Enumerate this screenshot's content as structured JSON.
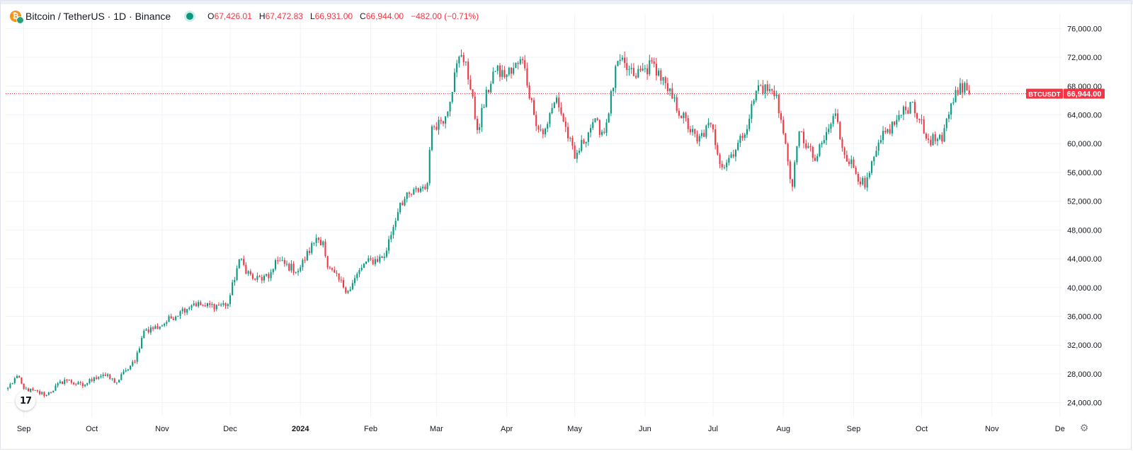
{
  "header": {
    "symbol_title": "Bitcoin / TetherUS · 1D · Binance",
    "coin_icon_letter": "₿",
    "status_icon": "live-dot",
    "ohlc": {
      "open_label": "O",
      "open": "67,426.01",
      "high_label": "H",
      "high": "67,472.83",
      "low_label": "L",
      "low": "66,931.00",
      "close_label": "C",
      "close": "66,944.00",
      "change": "−482.00 (−0.71%)"
    }
  },
  "price_tag": {
    "symbol": "BTCUSDT",
    "price": "66,944.00",
    "value": 66944,
    "color": "#f23645"
  },
  "branding": {
    "logo_text": "17",
    "logo_icon": "tradingview-logo-icon"
  },
  "settings_icon": "gear-icon",
  "colors": {
    "up": "#089981",
    "down": "#f23645",
    "grid": "#f0f3fa",
    "text": "#131722",
    "axis_text": "#131722"
  },
  "chart_data": {
    "type": "candlestick",
    "x_axis_type": "date",
    "ylim": [
      22000,
      78000
    ],
    "grid": true,
    "y_ticks": [
      {
        "value": 24000,
        "label": "24,000.00"
      },
      {
        "value": 28000,
        "label": "28,000.00"
      },
      {
        "value": 32000,
        "label": "32,000.00"
      },
      {
        "value": 36000,
        "label": "36,000.00"
      },
      {
        "value": 40000,
        "label": "40,000.00"
      },
      {
        "value": 44000,
        "label": "44,000.00"
      },
      {
        "value": 48000,
        "label": "48,000.00"
      },
      {
        "value": 52000,
        "label": "52,000.00"
      },
      {
        "value": 56000,
        "label": "56,000.00"
      },
      {
        "value": 60000,
        "label": "60,000.00"
      },
      {
        "value": 64000,
        "label": "64,000.00"
      },
      {
        "value": 68000,
        "label": "68,000.00"
      },
      {
        "value": 72000,
        "label": "72,000.00"
      },
      {
        "value": 76000,
        "label": "76,000.00"
      }
    ],
    "x_ticks": [
      {
        "date": "2023-09-01",
        "label": "Sep"
      },
      {
        "date": "2023-10-01",
        "label": "Oct"
      },
      {
        "date": "2023-11-01",
        "label": "Nov"
      },
      {
        "date": "2023-12-01",
        "label": "Dec"
      },
      {
        "date": "2024-01-01",
        "label": "2024"
      },
      {
        "date": "2024-02-01",
        "label": "Feb"
      },
      {
        "date": "2024-03-01",
        "label": "Mar"
      },
      {
        "date": "2024-04-01",
        "label": "Apr"
      },
      {
        "date": "2024-05-01",
        "label": "May"
      },
      {
        "date": "2024-06-01",
        "label": "Jun"
      },
      {
        "date": "2024-07-01",
        "label": "Jul"
      },
      {
        "date": "2024-08-01",
        "label": "Aug"
      },
      {
        "date": "2024-09-01",
        "label": "Sep"
      },
      {
        "date": "2024-10-01",
        "label": "Oct"
      },
      {
        "date": "2024-11-01",
        "label": "Nov"
      },
      {
        "date": "2024-12-01",
        "label": "De"
      }
    ],
    "x_range": [
      "2023-08-24",
      "2024-12-02"
    ],
    "last_price": 66944,
    "series": [
      {
        "start_date": "2023-08-25",
        "end_date": "2024-10-22",
        "close_anchors": [
          [
            "2023-08-25",
            26050
          ],
          [
            "2023-08-29",
            27700
          ],
          [
            "2023-09-01",
            25900
          ],
          [
            "2023-09-11",
            25100
          ],
          [
            "2023-09-19",
            27200
          ],
          [
            "2023-09-27",
            26300
          ],
          [
            "2023-10-02",
            27500
          ],
          [
            "2023-10-06",
            27900
          ],
          [
            "2023-10-12",
            26800
          ],
          [
            "2023-10-16",
            28500
          ],
          [
            "2023-10-20",
            29700
          ],
          [
            "2023-10-23",
            33000
          ],
          [
            "2023-10-24",
            34000
          ],
          [
            "2023-10-31",
            34600
          ],
          [
            "2023-11-09",
            36700
          ],
          [
            "2023-11-15",
            37800
          ],
          [
            "2023-11-20",
            37400
          ],
          [
            "2023-11-30",
            37700
          ],
          [
            "2023-12-05",
            43900
          ],
          [
            "2023-12-11",
            41200
          ],
          [
            "2023-12-18",
            41300
          ],
          [
            "2023-12-21",
            43800
          ],
          [
            "2023-12-31",
            42300
          ],
          [
            "2024-01-08",
            46900
          ],
          [
            "2024-01-11",
            46400
          ],
          [
            "2024-01-13",
            42800
          ],
          [
            "2024-01-22",
            39500
          ],
          [
            "2024-01-29",
            43300
          ],
          [
            "2024-02-07",
            44300
          ],
          [
            "2024-02-14",
            51800
          ],
          [
            "2024-02-26",
            54500
          ],
          [
            "2024-02-28",
            62400
          ],
          [
            "2024-03-05",
            63800
          ],
          [
            "2024-03-11",
            72100
          ],
          [
            "2024-03-14",
            71400
          ],
          [
            "2024-03-19",
            61900
          ],
          [
            "2024-03-26",
            70000
          ],
          [
            "2024-04-01",
            69600
          ],
          [
            "2024-04-08",
            71600
          ],
          [
            "2024-04-13",
            64000
          ],
          [
            "2024-04-17",
            61300
          ],
          [
            "2024-04-23",
            66400
          ],
          [
            "2024-05-01",
            57900
          ],
          [
            "2024-05-09",
            63000
          ],
          [
            "2024-05-14",
            61500
          ],
          [
            "2024-05-20",
            71500
          ],
          [
            "2024-05-27",
            69400
          ],
          [
            "2024-06-05",
            71100
          ],
          [
            "2024-06-11",
            67300
          ],
          [
            "2024-06-24",
            60300
          ],
          [
            "2024-06-30",
            62700
          ],
          [
            "2024-07-05",
            56700
          ],
          [
            "2024-07-14",
            60800
          ],
          [
            "2024-07-21",
            68100
          ],
          [
            "2024-07-29",
            66800
          ],
          [
            "2024-08-05",
            54000
          ],
          [
            "2024-08-08",
            61700
          ],
          [
            "2024-08-15",
            57600
          ],
          [
            "2024-08-24",
            64200
          ],
          [
            "2024-08-27",
            59400
          ],
          [
            "2024-09-06",
            53900
          ],
          [
            "2024-09-13",
            60500
          ],
          [
            "2024-09-20",
            63300
          ],
          [
            "2024-09-27",
            65800
          ],
          [
            "2024-09-30",
            63300
          ],
          [
            "2024-10-03",
            60700
          ],
          [
            "2024-10-10",
            60300
          ],
          [
            "2024-10-14",
            65600
          ],
          [
            "2024-10-18",
            68400
          ],
          [
            "2024-10-21",
            67400
          ],
          [
            "2024-10-22",
            66944
          ]
        ]
      }
    ]
  }
}
